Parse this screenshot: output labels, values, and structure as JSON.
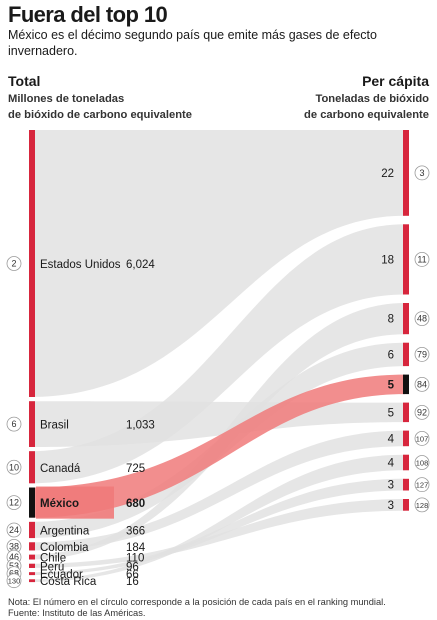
{
  "header": {
    "title": "Fuera del top 10",
    "subtitle": "México es el décimo segundo país que emite más gases de efecto invernadero."
  },
  "left_column": {
    "title": "Total",
    "subtitle_line1": "Millones de toneladas",
    "subtitle_line2": "de bióxido de carbono equivalente"
  },
  "right_column": {
    "title": "Per cápita",
    "subtitle_line1": "Toneladas de bióxido",
    "subtitle_line2": "de carbono equivalente"
  },
  "colors": {
    "accent": "#d7263d",
    "highlight_flow": "#f07a7a",
    "highlight_bar": "#111111",
    "flow": "#e0e0e0",
    "circle_border": "#9a9a9a"
  },
  "chart_data": {
    "type": "sankey",
    "left_label": "Total",
    "right_label": "Per cápita",
    "highlight": "México",
    "countries": [
      {
        "rank": "2",
        "name": "Estados Unidos",
        "total": "6,024",
        "per_capita_rank": "3"
      },
      {
        "rank": "6",
        "name": "Brasil",
        "total": "1,033",
        "per_capita_rank": "92"
      },
      {
        "rank": "10",
        "name": "Canadá",
        "total": "725",
        "per_capita_rank": "11"
      },
      {
        "rank": "12",
        "name": "México",
        "total": "680",
        "per_capita_rank": "84"
      },
      {
        "rank": "24",
        "name": "Argentina",
        "total": "366",
        "per_capita_rank": "79"
      },
      {
        "rank": "38",
        "name": "Colombia",
        "total": "184",
        "per_capita_rank": "107"
      },
      {
        "rank": "46",
        "name": "Chile",
        "total": "110",
        "per_capita_rank": "48"
      },
      {
        "rank": "53",
        "name": "Perú",
        "total": "96",
        "per_capita_rank": "128"
      },
      {
        "rank": "68",
        "name": "Ecuador",
        "total": "66",
        "per_capita_rank": "127"
      },
      {
        "rank": "130",
        "name": "Costa Rica",
        "total": "16",
        "per_capita_rank": "108"
      }
    ],
    "per_capita": [
      {
        "value": "22",
        "rank": "3"
      },
      {
        "value": "18",
        "rank": "11"
      },
      {
        "value": "8",
        "rank": "48"
      },
      {
        "value": "6",
        "rank": "79"
      },
      {
        "value": "5",
        "rank": "84"
      },
      {
        "value": "5",
        "rank": "92"
      },
      {
        "value": "4",
        "rank": "107"
      },
      {
        "value": "4",
        "rank": "108"
      },
      {
        "value": "3",
        "rank": "127"
      },
      {
        "value": "3",
        "rank": "128"
      }
    ]
  },
  "footer": {
    "note": "Nota: El número en el círculo corresponde a la posición de cada país en el ranking mundial.",
    "source": "Fuente: Instituto de las Américas."
  }
}
